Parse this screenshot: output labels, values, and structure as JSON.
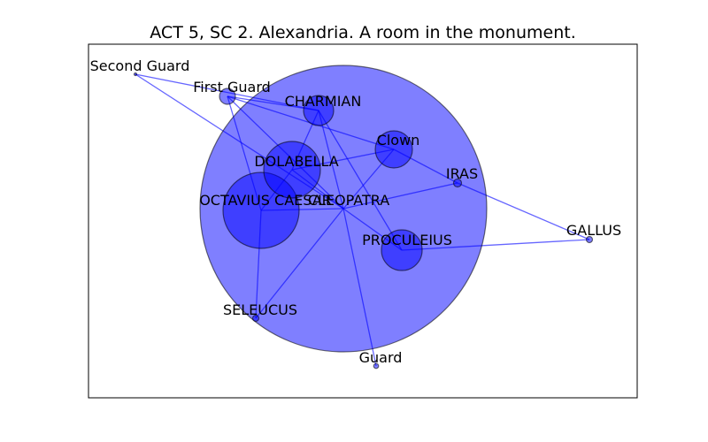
{
  "title": "ACT 5, SC 2. Alexandria. A room in the monument.",
  "colors": {
    "node": "#0000ff",
    "edge": "#0000ff",
    "frame": "#000000"
  },
  "chart_data": {
    "type": "network",
    "nodes": [
      {
        "id": "cleopatra",
        "label": "CLEOPATRA"
      },
      {
        "id": "octavius",
        "label": "OCTAVIUS CAESAR"
      },
      {
        "id": "dolabella",
        "label": "DOLABELLA"
      },
      {
        "id": "proculeius",
        "label": "PROCULEIUS"
      },
      {
        "id": "clown",
        "label": "Clown"
      },
      {
        "id": "charmian",
        "label": "CHARMIAN"
      },
      {
        "id": "first_guard",
        "label": "First Guard"
      },
      {
        "id": "iras",
        "label": "IRAS"
      },
      {
        "id": "gallus",
        "label": "GALLUS"
      },
      {
        "id": "seleucus",
        "label": "SELEUCUS"
      },
      {
        "id": "guard",
        "label": "Guard"
      },
      {
        "id": "second_guard",
        "label": "Second Guard"
      }
    ],
    "edges": [
      [
        "cleopatra",
        "octavius"
      ],
      [
        "cleopatra",
        "dolabella"
      ],
      [
        "cleopatra",
        "proculeius"
      ],
      [
        "cleopatra",
        "clown"
      ],
      [
        "cleopatra",
        "charmian"
      ],
      [
        "cleopatra",
        "iras"
      ],
      [
        "cleopatra",
        "seleucus"
      ],
      [
        "cleopatra",
        "guard"
      ],
      [
        "cleopatra",
        "first_guard"
      ],
      [
        "cleopatra",
        "second_guard"
      ],
      [
        "octavius",
        "dolabella"
      ],
      [
        "octavius",
        "seleucus"
      ],
      [
        "octavius",
        "first_guard"
      ],
      [
        "dolabella",
        "charmian"
      ],
      [
        "charmian",
        "first_guard"
      ],
      [
        "charmian",
        "proculeius"
      ],
      [
        "charmian",
        "second_guard"
      ],
      [
        "clown",
        "dolabella"
      ],
      [
        "clown",
        "iras"
      ],
      [
        "proculeius",
        "gallus"
      ],
      [
        "iras",
        "gallus"
      ],
      [
        "first_guard",
        "clown"
      ]
    ]
  }
}
